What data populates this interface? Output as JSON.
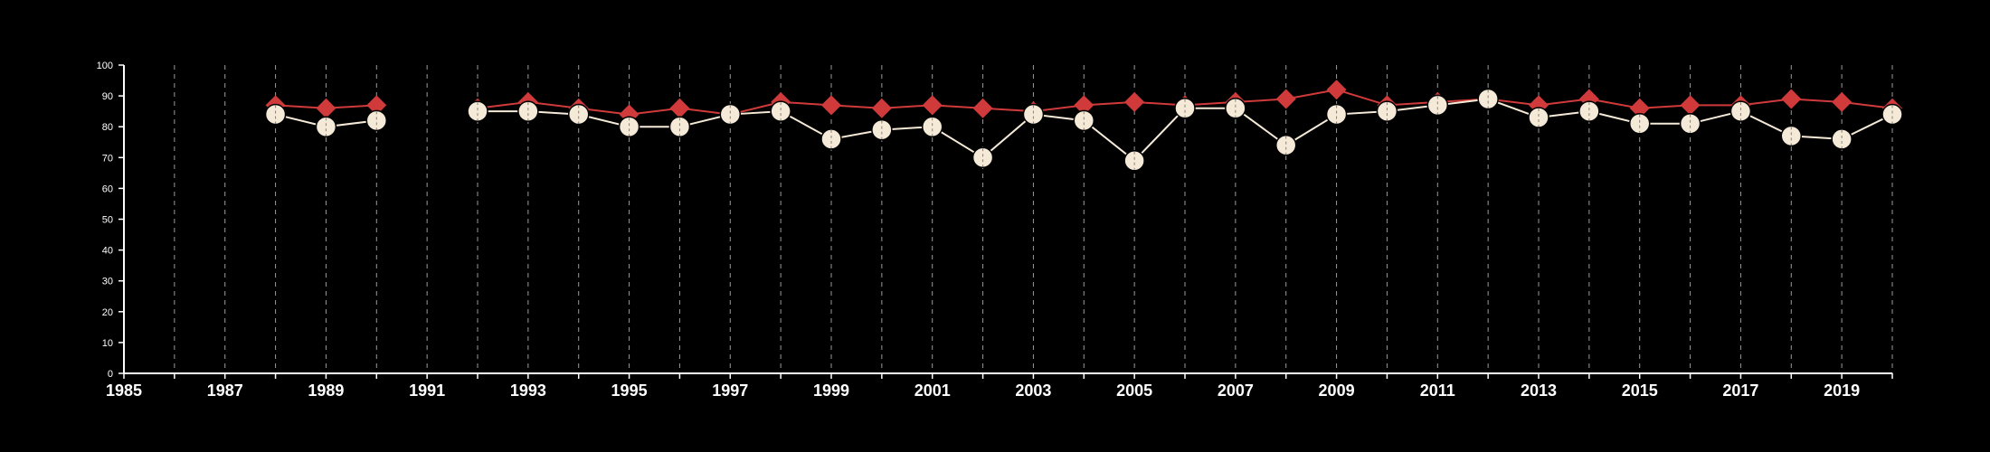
{
  "chart_data": {
    "type": "line",
    "title": "",
    "xlabel": "",
    "ylabel": "",
    "xlim": [
      1985,
      2020
    ],
    "ylim": [
      0,
      100
    ],
    "x_ticks": [
      1985,
      1987,
      1989,
      1991,
      1993,
      1995,
      1997,
      1999,
      2001,
      2003,
      2005,
      2007,
      2009,
      2011,
      2013,
      2015,
      2017,
      2019
    ],
    "y_ticks": [
      0,
      10,
      20,
      30,
      40,
      50,
      60,
      70,
      80,
      90,
      100
    ],
    "grid": "vertical dashed at every year",
    "legend": "none",
    "background_color": "#000000",
    "x": [
      1985,
      1986,
      1987,
      1988,
      1989,
      1990,
      1991,
      1992,
      1993,
      1994,
      1995,
      1996,
      1997,
      1998,
      1999,
      2000,
      2001,
      2002,
      2003,
      2004,
      2005,
      2006,
      2007,
      2008,
      2009,
      2010,
      2011,
      2012,
      2013,
      2014,
      2015,
      2016,
      2017,
      2018,
      2019,
      2020
    ],
    "series": [
      {
        "marker": "diamond",
        "color": "#d03a3a",
        "values": [
          null,
          null,
          null,
          87,
          86,
          87,
          null,
          86,
          88,
          86,
          84,
          86,
          84,
          88,
          87,
          86,
          87,
          86,
          85,
          87,
          88,
          87,
          88,
          89,
          92,
          87,
          88,
          89,
          87,
          89,
          86,
          87,
          87,
          89,
          88,
          86
        ]
      },
      {
        "marker": "circle",
        "color": "#f5ead8",
        "values": [
          null,
          null,
          null,
          84,
          80,
          82,
          null,
          85,
          85,
          84,
          80,
          80,
          84,
          85,
          76,
          79,
          80,
          70,
          84,
          82,
          69,
          86,
          86,
          74,
          84,
          85,
          87,
          89,
          83,
          85,
          81,
          81,
          85,
          77,
          76,
          84
        ]
      }
    ]
  }
}
